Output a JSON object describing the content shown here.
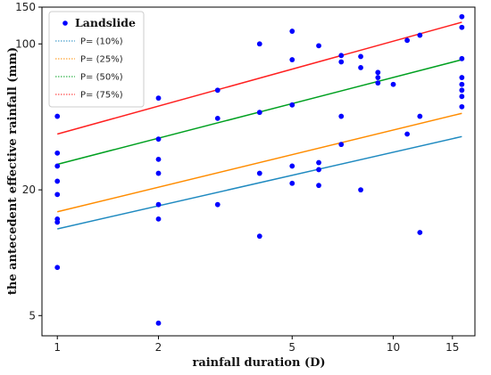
{
  "chart_data": {
    "type": "scatter",
    "x_scale": "log",
    "y_scale": "log",
    "xlabel": "rainfall duration (D)",
    "ylabel": "the antecedent effective rainfall (mm)",
    "xlim": [
      0.9,
      17.5
    ],
    "ylim": [
      4.0,
      150
    ],
    "x_ticks": [
      1,
      2,
      5,
      10,
      15
    ],
    "y_ticks": [
      5,
      20,
      100,
      150
    ],
    "grid": false,
    "legend": {
      "placement": "top-left",
      "scatter_label": "Landslide",
      "line_labels": [
        "P= (10%)",
        "P= (25%)",
        "P= (50%)",
        "P= (75%)"
      ]
    },
    "scatter": {
      "name": "Landslide",
      "color": "#0000ff",
      "points": [
        [
          1,
          45
        ],
        [
          1,
          30
        ],
        [
          1,
          26
        ],
        [
          1,
          22
        ],
        [
          1,
          19
        ],
        [
          1,
          14.5
        ],
        [
          1,
          14
        ],
        [
          1,
          8.5
        ],
        [
          2,
          55
        ],
        [
          2,
          35
        ],
        [
          2,
          28
        ],
        [
          2,
          24
        ],
        [
          2,
          17
        ],
        [
          2,
          14.5
        ],
        [
          2,
          4.6
        ],
        [
          3,
          60
        ],
        [
          3,
          44
        ],
        [
          3,
          17
        ],
        [
          4,
          100
        ],
        [
          4,
          47
        ],
        [
          4,
          24
        ],
        [
          4,
          12
        ],
        [
          5,
          115
        ],
        [
          5,
          84
        ],
        [
          5,
          51
        ],
        [
          5,
          26
        ],
        [
          5,
          21.5
        ],
        [
          6,
          98
        ],
        [
          6,
          27
        ],
        [
          6,
          25
        ],
        [
          6,
          21
        ],
        [
          7,
          88
        ],
        [
          7,
          82
        ],
        [
          7,
          45
        ],
        [
          7,
          33
        ],
        [
          8,
          87
        ],
        [
          8,
          77
        ],
        [
          8,
          20
        ],
        [
          9,
          73
        ],
        [
          9,
          69
        ],
        [
          9,
          65
        ],
        [
          10,
          64
        ],
        [
          11,
          104
        ],
        [
          11,
          37
        ],
        [
          12,
          110
        ],
        [
          12,
          45
        ],
        [
          12,
          12.5
        ],
        [
          16,
          135
        ],
        [
          16,
          120
        ],
        [
          16,
          85
        ],
        [
          16,
          69
        ],
        [
          16,
          64
        ],
        [
          16,
          60
        ],
        [
          16,
          56
        ],
        [
          16,
          50
        ]
      ]
    },
    "series": [
      {
        "name": "P= (10%)",
        "color": "#1f8ac0",
        "x": [
          1,
          16
        ],
        "values": [
          13.0,
          36.0
        ]
      },
      {
        "name": "P= (25%)",
        "color": "#ff8c00",
        "x": [
          1,
          16
        ],
        "values": [
          15.7,
          46.5
        ]
      },
      {
        "name": "P= (50%)",
        "color": "#00a020",
        "x": [
          1,
          16
        ],
        "values": [
          26.5,
          84.0
        ]
      },
      {
        "name": "P= (75%)",
        "color": "#ff2020",
        "x": [
          1,
          16
        ],
        "values": [
          37.0,
          127.0
        ]
      }
    ]
  }
}
